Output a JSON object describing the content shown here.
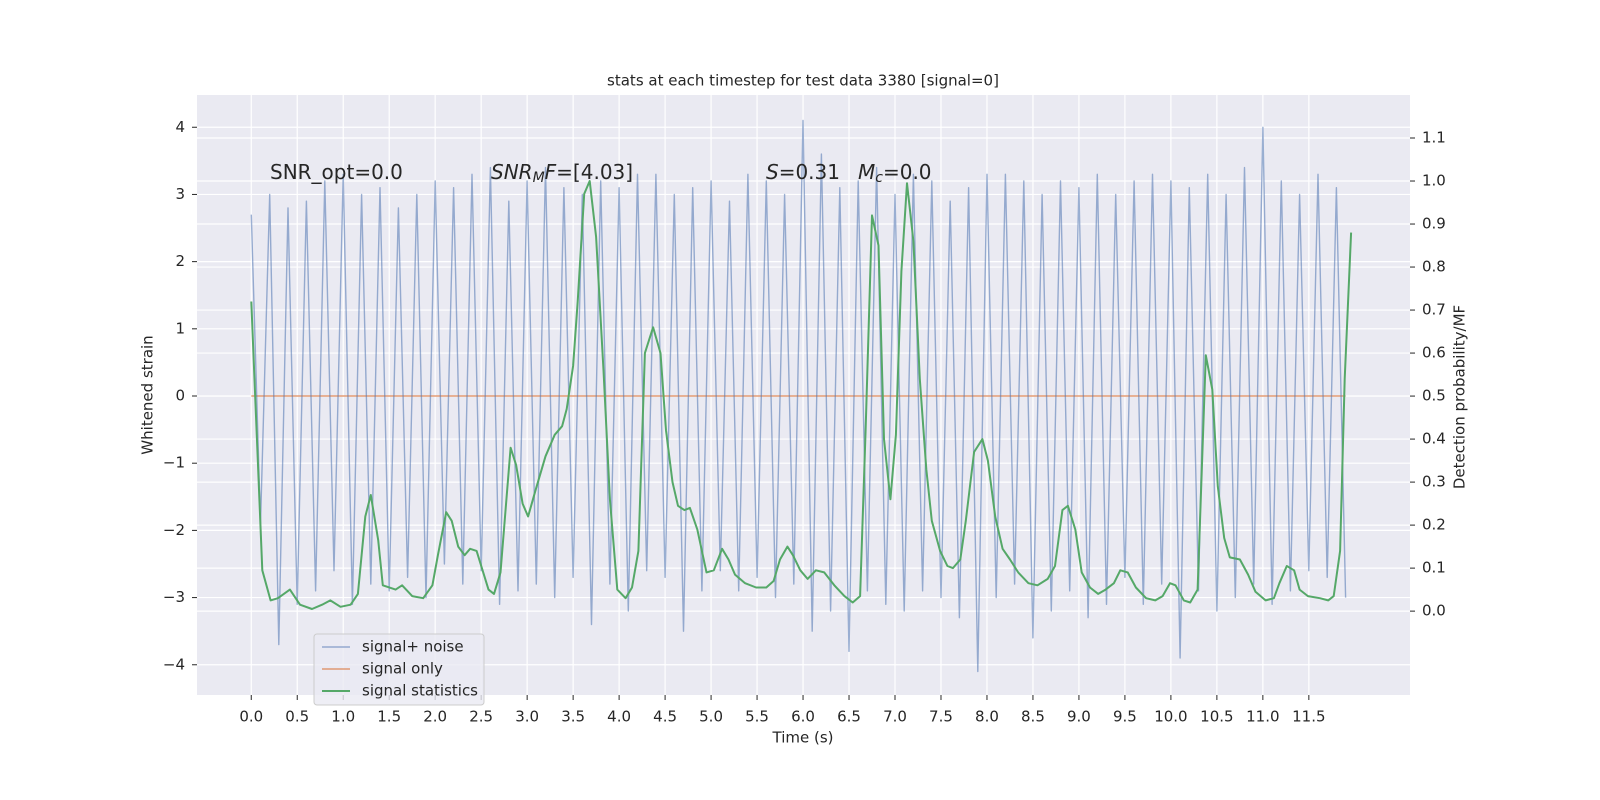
{
  "chart_data": {
    "type": "line",
    "title": "stats at each timestep for test data 3380 [signal=0]",
    "xlabel": "Time (s)",
    "ylabel": "Whitened strain",
    "y2label": "Detection probability/MF",
    "annotations": [
      [
        {
          "text": "SNR_opt=0.0",
          "style": "normal"
        }
      ],
      [
        {
          "text": "SNR",
          "style": "italic"
        },
        {
          "text": "M",
          "style": "sub"
        },
        {
          "text": "F",
          "style": "italic"
        },
        {
          "text": "=[4.03]",
          "style": "normal"
        }
      ],
      [
        {
          "text": "S",
          "style": "italic"
        },
        {
          "text": "=0.31",
          "style": "normal"
        }
      ],
      [
        {
          "text": "M",
          "style": "italic"
        },
        {
          "text": "c",
          "style": "sub"
        },
        {
          "text": "=0.0",
          "style": "normal"
        }
      ]
    ],
    "xlim": [
      -0.59,
      12.6
    ],
    "xticks": [
      {
        "value": 0,
        "label": "0.0"
      },
      0.5,
      {
        "value": 1,
        "label": "1.0"
      },
      1.5,
      {
        "value": 2,
        "label": "2.0"
      },
      2.5,
      {
        "value": 3,
        "label": "3.0"
      },
      3.5,
      {
        "value": 4,
        "label": "4.0"
      },
      4.5,
      {
        "value": 5,
        "label": "5.0"
      },
      5.5,
      {
        "value": 6,
        "label": "6.0"
      },
      6.5,
      {
        "value": 7,
        "label": "7.0"
      },
      7.5,
      {
        "value": 8,
        "label": "8.0"
      },
      8.5,
      {
        "value": 9,
        "label": "9.0"
      },
      9.5,
      {
        "value": 10,
        "label": "10.0"
      },
      10.5,
      {
        "value": 11,
        "label": "11.0"
      },
      11.5
    ],
    "ylim": [
      -4.45,
      4.48
    ],
    "yticks": [
      {
        "value": -4,
        "label": "−4"
      },
      {
        "value": -3,
        "label": "−3"
      },
      {
        "value": -2,
        "label": "−2"
      },
      {
        "value": -1,
        "label": "−1"
      },
      0,
      1,
      2,
      3,
      4
    ],
    "y2lim": [
      -0.195,
      1.2
    ],
    "y2ticks": [
      {
        "value": 0,
        "label": "0.0"
      },
      0.1,
      0.2,
      0.3,
      0.4,
      0.5,
      0.6,
      0.7,
      0.8,
      0.9,
      {
        "value": 1,
        "label": "1.0"
      },
      1.1
    ],
    "grid": true,
    "legend": "lower left",
    "series": [
      {
        "name": "signal only",
        "color": "#dd8452",
        "x": [
          0.0,
          11.9
        ],
        "values": [
          0,
          0
        ]
      },
      {
        "name": "signal+ noise",
        "color": "#4c72b0",
        "x": [
          0.0,
          0.1,
          0.2,
          0.3,
          0.4,
          0.5,
          0.6,
          0.7,
          0.8,
          0.9,
          1.0,
          1.1,
          1.2,
          1.3,
          1.4,
          1.5,
          1.6,
          1.7,
          1.8,
          1.9,
          2.0,
          2.1,
          2.2,
          2.3,
          2.4,
          2.5,
          2.6,
          2.7,
          2.8,
          2.9,
          3.0,
          3.1,
          3.2,
          3.3,
          3.4,
          3.5,
          3.6,
          3.7,
          3.8,
          3.9,
          4.0,
          4.1,
          4.2,
          4.3,
          4.4,
          4.5,
          4.6,
          4.7,
          4.8,
          4.9,
          5.0,
          5.1,
          5.2,
          5.3,
          5.4,
          5.5,
          5.6,
          5.7,
          5.8,
          5.9,
          6.0,
          6.1,
          6.2,
          6.3,
          6.4,
          6.5,
          6.6,
          6.7,
          6.8,
          6.9,
          7.0,
          7.1,
          7.2,
          7.3,
          7.4,
          7.5,
          7.6,
          7.7,
          7.8,
          7.9,
          8.0,
          8.1,
          8.2,
          8.3,
          8.4,
          8.5,
          8.6,
          8.7,
          8.8,
          8.9,
          9.0,
          9.1,
          9.2,
          9.3,
          9.4,
          9.5,
          9.6,
          9.7,
          9.8,
          9.9,
          10.0,
          10.1,
          10.2,
          10.3,
          10.4,
          10.5,
          10.6,
          10.7,
          10.8,
          10.9,
          11.0,
          11.1,
          11.2,
          11.3,
          11.4,
          11.5,
          11.6,
          11.7,
          11.8,
          11.9
        ],
        "values": [
          2.7,
          -1.9,
          3.0,
          -3.7,
          2.8,
          -3.1,
          2.9,
          -2.9,
          3.2,
          -2.6,
          3.3,
          -3.1,
          3.0,
          -2.8,
          3.1,
          -2.9,
          2.8,
          -2.7,
          3.0,
          -3.0,
          3.2,
          -2.5,
          3.1,
          -2.8,
          3.3,
          -2.6,
          3.4,
          -3.1,
          2.9,
          -2.9,
          3.2,
          -2.8,
          3.4,
          -3.0,
          3.1,
          -2.7,
          3.0,
          -3.4,
          3.2,
          -2.8,
          3.1,
          -3.2,
          3.3,
          -2.6,
          3.3,
          -2.7,
          3.0,
          -3.5,
          3.1,
          -2.9,
          3.2,
          -2.6,
          2.9,
          -2.9,
          3.3,
          -2.7,
          3.2,
          -3.0,
          3.0,
          -2.8,
          4.1,
          -3.5,
          3.6,
          -3.2,
          3.1,
          -3.8,
          3.2,
          -2.9,
          3.4,
          -3.1,
          3.0,
          -3.2,
          3.3,
          -2.9,
          3.2,
          -3.0,
          2.9,
          -3.3,
          3.1,
          -4.1,
          3.3,
          -3.0,
          3.3,
          -2.8,
          3.2,
          -3.6,
          3.0,
          -3.2,
          3.2,
          -2.9,
          3.1,
          -3.3,
          3.3,
          -3.1,
          3.0,
          -2.7,
          3.2,
          -3.1,
          3.3,
          -2.8,
          3.2,
          -3.9,
          3.1,
          -2.9,
          3.3,
          -3.2,
          3.0,
          -3.0,
          3.4,
          -2.8,
          4.0,
          -3.1,
          3.2,
          -2.9,
          3.0,
          -2.6,
          3.3,
          -2.7,
          3.1,
          -3.0
        ]
      },
      {
        "name": "signal statistics",
        "color": "#55a868",
        "axis": "y2",
        "x": [
          0.0,
          0.12,
          0.21,
          0.29,
          0.42,
          0.53,
          0.66,
          0.77,
          0.86,
          0.97,
          1.08,
          1.16,
          1.24,
          1.3,
          1.38,
          1.43,
          1.57,
          1.64,
          1.75,
          1.87,
          1.97,
          2.03,
          2.12,
          2.18,
          2.25,
          2.32,
          2.38,
          2.45,
          2.58,
          2.64,
          2.71,
          2.82,
          2.88,
          2.95,
          3.01,
          3.09,
          3.2,
          3.3,
          3.38,
          3.43,
          3.5,
          3.55,
          3.62,
          3.68,
          3.75,
          3.83,
          3.9,
          3.98,
          4.07,
          4.14,
          4.21,
          4.28,
          4.37,
          4.45,
          4.51,
          4.58,
          4.64,
          4.71,
          4.77,
          4.85,
          4.95,
          5.03,
          5.12,
          5.19,
          5.26,
          5.37,
          5.49,
          5.6,
          5.68,
          5.75,
          5.83,
          5.89,
          5.97,
          6.05,
          6.14,
          6.23,
          6.34,
          6.45,
          6.54,
          6.62,
          6.68,
          6.75,
          6.82,
          6.88,
          6.95,
          7.01,
          7.07,
          7.13,
          7.2,
          7.27,
          7.34,
          7.4,
          7.49,
          7.57,
          7.63,
          7.71,
          7.77,
          7.86,
          7.95,
          8.01,
          8.09,
          8.17,
          8.25,
          8.34,
          8.45,
          8.55,
          8.66,
          8.74,
          8.82,
          8.88,
          8.96,
          9.03,
          9.12,
          9.21,
          9.29,
          9.38,
          9.45,
          9.53,
          9.62,
          9.73,
          9.83,
          9.91,
          9.99,
          10.05,
          10.14,
          10.21,
          10.29,
          10.38,
          10.45,
          10.51,
          10.58,
          10.64,
          10.75,
          10.84,
          10.92,
          11.03,
          11.12,
          11.18,
          11.26,
          11.34,
          11.4,
          11.49,
          11.62,
          11.71,
          11.77,
          11.84,
          11.89,
          11.96
        ],
        "values": [
          0.72,
          0.095,
          0.025,
          0.03,
          0.05,
          0.015,
          0.005,
          0.015,
          0.025,
          0.01,
          0.015,
          0.04,
          0.22,
          0.27,
          0.165,
          0.06,
          0.05,
          0.06,
          0.035,
          0.03,
          0.06,
          0.13,
          0.23,
          0.21,
          0.15,
          0.13,
          0.145,
          0.14,
          0.05,
          0.04,
          0.09,
          0.38,
          0.34,
          0.25,
          0.22,
          0.28,
          0.36,
          0.41,
          0.43,
          0.47,
          0.57,
          0.72,
          0.97,
          1.0,
          0.87,
          0.56,
          0.26,
          0.05,
          0.03,
          0.055,
          0.14,
          0.6,
          0.66,
          0.6,
          0.42,
          0.3,
          0.245,
          0.235,
          0.24,
          0.19,
          0.09,
          0.095,
          0.145,
          0.12,
          0.085,
          0.065,
          0.055,
          0.055,
          0.07,
          0.12,
          0.15,
          0.13,
          0.095,
          0.075,
          0.095,
          0.09,
          0.06,
          0.035,
          0.02,
          0.035,
          0.42,
          0.92,
          0.85,
          0.4,
          0.26,
          0.41,
          0.79,
          0.995,
          0.86,
          0.54,
          0.33,
          0.21,
          0.14,
          0.105,
          0.1,
          0.12,
          0.21,
          0.37,
          0.4,
          0.35,
          0.22,
          0.145,
          0.12,
          0.09,
          0.065,
          0.06,
          0.075,
          0.105,
          0.235,
          0.245,
          0.19,
          0.09,
          0.055,
          0.04,
          0.05,
          0.065,
          0.095,
          0.09,
          0.055,
          0.03,
          0.025,
          0.035,
          0.065,
          0.06,
          0.025,
          0.02,
          0.05,
          0.595,
          0.515,
          0.29,
          0.17,
          0.125,
          0.12,
          0.085,
          0.045,
          0.025,
          0.03,
          0.065,
          0.105,
          0.095,
          0.05,
          0.035,
          0.03,
          0.025,
          0.035,
          0.14,
          0.54,
          0.88
        ]
      }
    ]
  }
}
